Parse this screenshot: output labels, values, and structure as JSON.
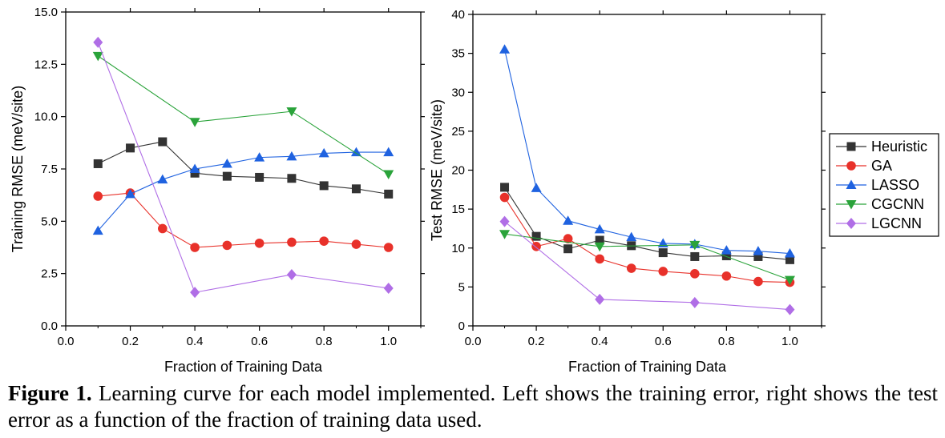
{
  "caption": {
    "label": "Figure 1.",
    "text": "Learning curve for each model implemented. Left shows the training error, right shows the test error as a function of the fraction of training data used."
  },
  "series_styles": [
    {
      "name": "Heuristic",
      "marker": "square",
      "color": "#333333"
    },
    {
      "name": "GA",
      "marker": "circle",
      "color": "#e8312a"
    },
    {
      "name": "LASSO",
      "marker": "triangle-up",
      "color": "#1f62e0"
    },
    {
      "name": "CGCNN",
      "marker": "triangle-down",
      "color": "#2aa33a"
    },
    {
      "name": "LGCNN",
      "marker": "diamond",
      "color": "#b06ee6"
    }
  ],
  "chart_data": [
    {
      "type": "line",
      "xlabel": "Fraction of Training Data",
      "ylabel": "Training RMSE (meV/site)",
      "xlim": [
        0.0,
        1.1
      ],
      "ylim": [
        0.0,
        15.0
      ],
      "xticks": [
        "0.0",
        "0.2",
        "0.4",
        "0.6",
        "0.8",
        "1.0"
      ],
      "yticks": [
        "0.0",
        "2.5",
        "5.0",
        "7.5",
        "10.0",
        "12.5",
        "15.0"
      ],
      "legend": "none",
      "grid": false,
      "series": [
        {
          "name": "Heuristic",
          "x": [
            0.1,
            0.2,
            0.3,
            0.4,
            0.5,
            0.6,
            0.7,
            0.8,
            0.9,
            1.0
          ],
          "y": [
            7.75,
            8.5,
            8.8,
            7.3,
            7.15,
            7.1,
            7.05,
            6.7,
            6.55,
            6.3
          ]
        },
        {
          "name": "GA",
          "x": [
            0.1,
            0.2,
            0.3,
            0.4,
            0.5,
            0.6,
            0.7,
            0.8,
            0.9,
            1.0
          ],
          "y": [
            6.2,
            6.35,
            4.65,
            3.75,
            3.85,
            3.95,
            4.0,
            4.05,
            3.9,
            3.75
          ]
        },
        {
          "name": "LASSO",
          "x": [
            0.1,
            0.2,
            0.3,
            0.4,
            0.5,
            0.6,
            0.7,
            0.8,
            0.9,
            1.0
          ],
          "y": [
            4.55,
            6.3,
            7.0,
            7.5,
            7.75,
            8.05,
            8.1,
            8.25,
            8.3,
            8.3
          ]
        },
        {
          "name": "CGCNN",
          "x": [
            0.1,
            0.4,
            0.7,
            1.0
          ],
          "y": [
            12.9,
            9.75,
            10.25,
            7.25
          ]
        },
        {
          "name": "LGCNN",
          "x": [
            0.1,
            0.4,
            0.7,
            1.0
          ],
          "y": [
            13.55,
            1.6,
            2.45,
            1.8
          ]
        }
      ]
    },
    {
      "type": "line",
      "xlabel": "Fraction of Training Data",
      "ylabel": "Test RMSE (meV/site)",
      "xlim": [
        0.0,
        1.1
      ],
      "ylim": [
        0,
        40
      ],
      "xticks": [
        "0.0",
        "0.2",
        "0.4",
        "0.6",
        "0.8",
        "1.0"
      ],
      "yticks": [
        "0",
        "5",
        "10",
        "15",
        "20",
        "25",
        "30",
        "35",
        "40"
      ],
      "legend": "right",
      "grid": false,
      "series": [
        {
          "name": "Heuristic",
          "x": [
            0.1,
            0.2,
            0.3,
            0.4,
            0.5,
            0.6,
            0.7,
            0.8,
            0.9,
            1.0
          ],
          "y": [
            17.8,
            11.5,
            9.9,
            11.0,
            10.3,
            9.4,
            8.9,
            9.0,
            8.9,
            8.5
          ]
        },
        {
          "name": "GA",
          "x": [
            0.1,
            0.2,
            0.3,
            0.4,
            0.5,
            0.6,
            0.7,
            0.8,
            0.9,
            1.0
          ],
          "y": [
            16.5,
            10.2,
            11.2,
            8.6,
            7.4,
            7.0,
            6.7,
            6.4,
            5.7,
            5.6
          ]
        },
        {
          "name": "LASSO",
          "x": [
            0.1,
            0.2,
            0.3,
            0.4,
            0.5,
            0.6,
            0.7,
            0.8,
            0.9,
            1.0
          ],
          "y": [
            35.5,
            17.7,
            13.5,
            12.4,
            11.4,
            10.6,
            10.5,
            9.7,
            9.6,
            9.3
          ]
        },
        {
          "name": "CGCNN",
          "x": [
            0.1,
            0.4,
            0.7,
            1.0
          ],
          "y": [
            11.8,
            10.2,
            10.4,
            5.9
          ]
        },
        {
          "name": "LGCNN",
          "x": [
            0.1,
            0.4,
            0.7,
            1.0
          ],
          "y": [
            13.4,
            3.4,
            3.0,
            2.1
          ]
        }
      ]
    }
  ]
}
